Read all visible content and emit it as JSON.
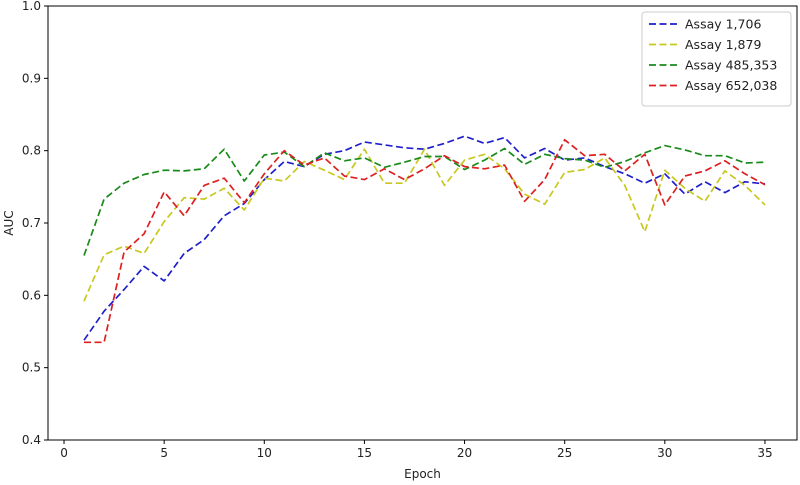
{
  "chart_data": {
    "type": "line",
    "title": "",
    "xlabel": "Epoch",
    "ylabel": "AUC",
    "xlim": [
      -0.8,
      36.6
    ],
    "ylim": [
      0.4,
      1.0
    ],
    "xticks": [
      0,
      5,
      10,
      15,
      20,
      25,
      30,
      35
    ],
    "yticks": [
      0.4,
      0.5,
      0.6,
      0.7,
      0.8,
      0.9,
      1.0
    ],
    "xtick_labels": [
      "0",
      "5",
      "10",
      "15",
      "20",
      "25",
      "30",
      "35"
    ],
    "ytick_labels": [
      "0.4",
      "0.5",
      "0.6",
      "0.7",
      "0.8",
      "0.9",
      "1.0"
    ],
    "grid": false,
    "legend_position": "top-right",
    "x": [
      1,
      2,
      3,
      4,
      5,
      6,
      7,
      8,
      9,
      10,
      11,
      12,
      13,
      14,
      15,
      16,
      17,
      18,
      19,
      20,
      21,
      22,
      23,
      24,
      25,
      26,
      27,
      28,
      29,
      30,
      31,
      32,
      33,
      34,
      35
    ],
    "series": [
      {
        "name": "Assay 1,706",
        "color": "#1f1fcc",
        "style": "dashed",
        "values": [
          0.538,
          0.578,
          0.608,
          0.64,
          0.62,
          0.658,
          0.677,
          0.71,
          0.727,
          0.76,
          0.785,
          0.778,
          0.795,
          0.8,
          0.812,
          0.808,
          0.804,
          0.802,
          0.81,
          0.82,
          0.81,
          0.818,
          0.79,
          0.803,
          0.787,
          0.79,
          0.778,
          0.768,
          0.755,
          0.768,
          0.74,
          0.757,
          0.742,
          0.757,
          0.754
        ]
      },
      {
        "name": "Assay 1,879",
        "color": "#c8c820",
        "style": "dashed",
        "values": [
          0.592,
          0.656,
          0.668,
          0.658,
          0.702,
          0.735,
          0.733,
          0.748,
          0.718,
          0.762,
          0.758,
          0.785,
          0.773,
          0.76,
          0.802,
          0.755,
          0.755,
          0.802,
          0.752,
          0.787,
          0.795,
          0.775,
          0.74,
          0.726,
          0.77,
          0.774,
          0.79,
          0.752,
          0.688,
          0.773,
          0.748,
          0.73,
          0.772,
          0.752,
          0.725
        ]
      },
      {
        "name": "Assay 485,353",
        "color": "#1a8a1a",
        "style": "dashed",
        "values": [
          0.655,
          0.733,
          0.755,
          0.767,
          0.773,
          0.772,
          0.775,
          0.802,
          0.758,
          0.794,
          0.798,
          0.778,
          0.797,
          0.786,
          0.79,
          0.777,
          0.784,
          0.792,
          0.792,
          0.774,
          0.787,
          0.803,
          0.781,
          0.795,
          0.789,
          0.787,
          0.777,
          0.785,
          0.797,
          0.807,
          0.801,
          0.793,
          0.793,
          0.783,
          0.784
        ]
      },
      {
        "name": "Assay 652,038",
        "color": "#dd2020",
        "style": "dashed",
        "values": [
          0.535,
          0.535,
          0.66,
          0.685,
          0.743,
          0.71,
          0.752,
          0.762,
          0.728,
          0.768,
          0.8,
          0.78,
          0.79,
          0.765,
          0.76,
          0.775,
          0.76,
          0.775,
          0.793,
          0.778,
          0.775,
          0.78,
          0.73,
          0.76,
          0.815,
          0.793,
          0.795,
          0.772,
          0.795,
          0.725,
          0.765,
          0.772,
          0.786,
          0.768,
          0.753
        ]
      }
    ]
  }
}
